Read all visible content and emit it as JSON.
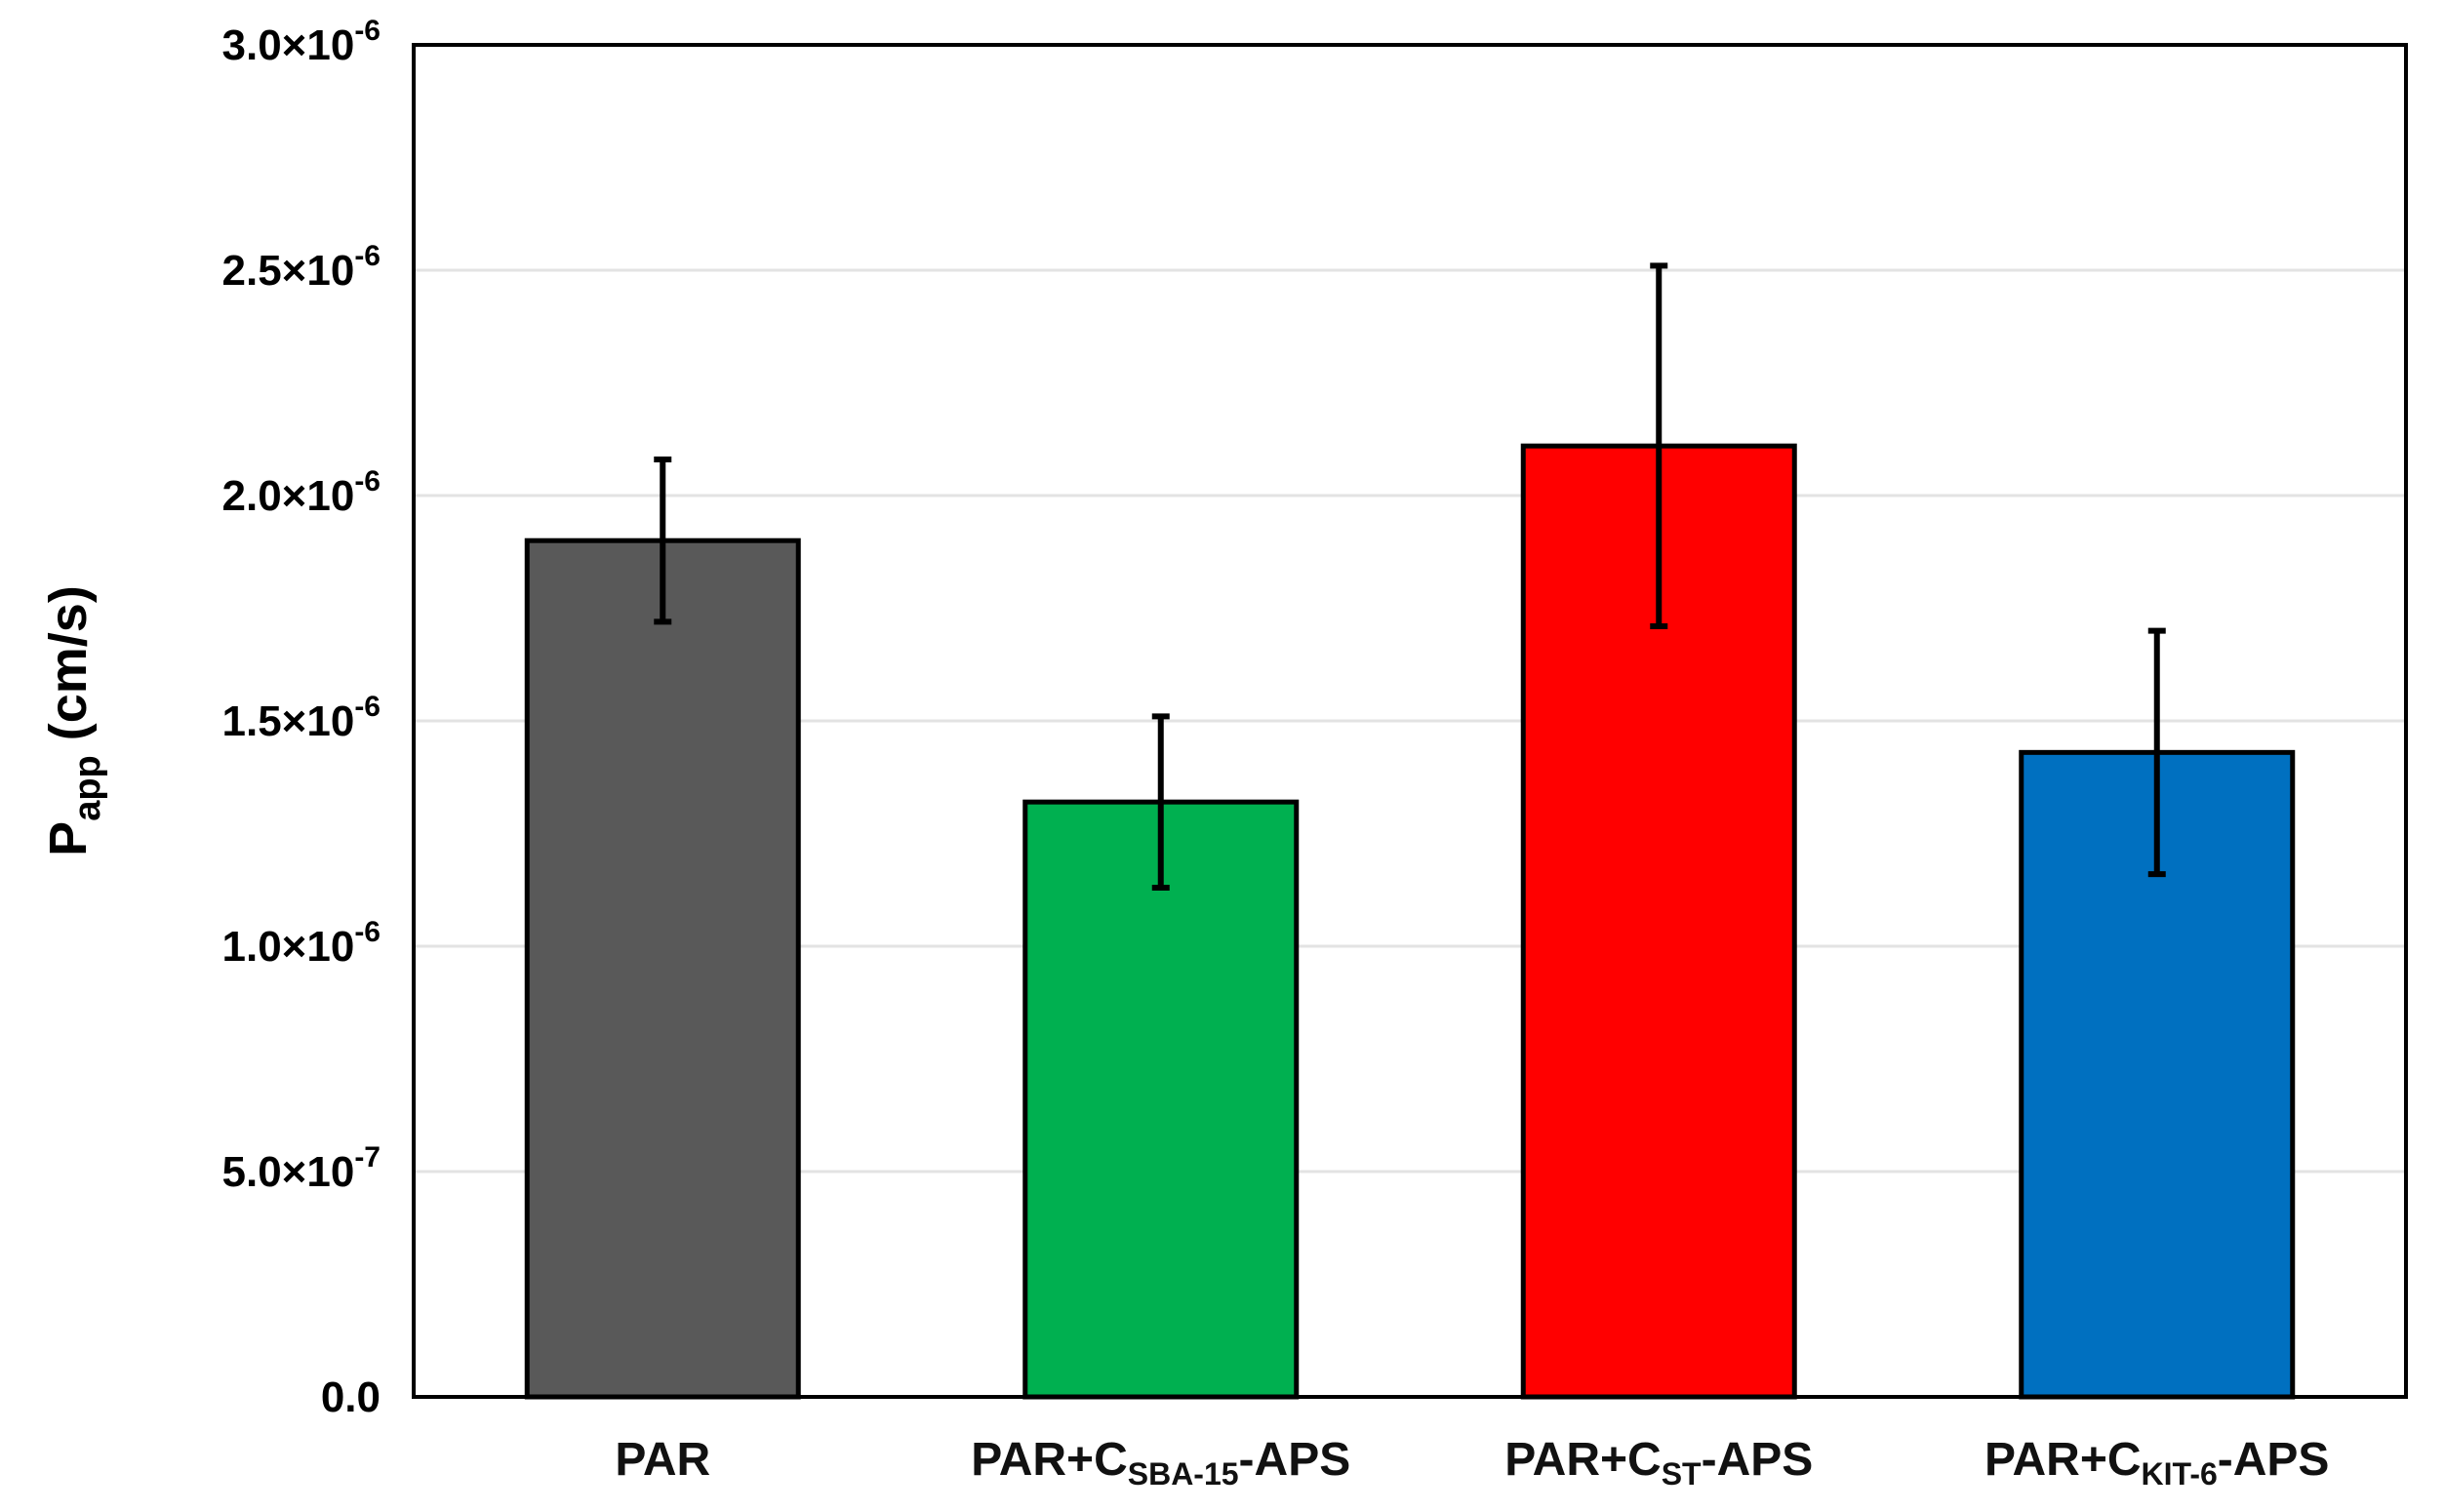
{
  "chart_data": {
    "type": "bar",
    "title": "",
    "ylabel": {
      "main": "P",
      "sub": "app",
      "rest": " (cm/s)"
    },
    "xlabel": "",
    "ylim": [
      0,
      3e-06
    ],
    "grid": true,
    "legend": "none",
    "yticks": [
      {
        "value": 0,
        "mantissa": "0.0",
        "exponent": ""
      },
      {
        "value": 5e-07,
        "mantissa": "5.0×10",
        "exponent": "-7"
      },
      {
        "value": 1e-06,
        "mantissa": "1.0×10",
        "exponent": "-6"
      },
      {
        "value": 1.5e-06,
        "mantissa": "1.5×10",
        "exponent": "-6"
      },
      {
        "value": 2e-06,
        "mantissa": "2.0×10",
        "exponent": "-6"
      },
      {
        "value": 2.5e-06,
        "mantissa": "2.5×10",
        "exponent": "-6"
      },
      {
        "value": 3e-06,
        "mantissa": "3.0×10",
        "exponent": "-6"
      }
    ],
    "categories": [
      {
        "pre": "PAR",
        "sub": "",
        "post": ""
      },
      {
        "pre": "PAR+C",
        "sub": "SBA-15",
        "post": "-APS"
      },
      {
        "pre": "PAR+C",
        "sub": "ST",
        "post": "-APS"
      },
      {
        "pre": "PAR+C",
        "sub": "KIT-6",
        "post": "-APS"
      }
    ],
    "values": [
      1.9e-06,
      1.32e-06,
      2.11e-06,
      1.43e-06
    ],
    "errors": [
      1.8e-07,
      1.9e-07,
      4e-07,
      2.7e-07
    ],
    "colors": [
      "#595959",
      "#00b050",
      "#ff0000",
      "#0070c0"
    ]
  }
}
